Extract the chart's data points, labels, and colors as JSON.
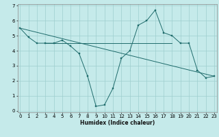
{
  "xlabel": "Humidex (Indice chaleur)",
  "xlim": [
    -0.3,
    23.3
  ],
  "ylim": [
    -0.1,
    7.1
  ],
  "xticks": [
    0,
    1,
    2,
    3,
    4,
    5,
    6,
    7,
    8,
    9,
    10,
    11,
    12,
    13,
    14,
    15,
    16,
    17,
    18,
    19,
    20,
    21,
    22,
    23
  ],
  "yticks": [
    0,
    1,
    2,
    3,
    4,
    5,
    6,
    7
  ],
  "bg_color": "#c5eaea",
  "grid_color": "#9ecece",
  "line_color": "#1e6b6b",
  "line1_x": [
    0,
    1,
    2,
    3,
    4,
    5,
    6,
    7,
    8,
    9,
    10,
    11,
    12,
    13,
    14,
    15,
    16,
    17,
    18,
    19,
    20,
    21,
    22,
    23
  ],
  "line1_y": [
    5.5,
    4.9,
    4.5,
    4.5,
    4.5,
    4.7,
    4.3,
    3.8,
    2.3,
    0.3,
    0.4,
    1.5,
    3.5,
    4.0,
    5.7,
    6.0,
    6.7,
    5.2,
    5.0,
    4.5,
    4.5,
    2.7,
    2.2,
    2.3
  ],
  "line2_x": [
    3,
    4,
    5,
    6,
    7,
    8,
    9,
    10,
    11,
    12,
    13,
    14,
    15,
    16,
    17,
    18
  ],
  "line2_y": [
    4.5,
    4.5,
    4.5,
    4.5,
    4.5,
    4.5,
    4.5,
    4.5,
    4.5,
    4.5,
    4.5,
    4.5,
    4.5,
    4.5,
    4.5,
    4.5
  ],
  "line3_x": [
    0,
    23
  ],
  "line3_y": [
    5.5,
    2.3
  ]
}
